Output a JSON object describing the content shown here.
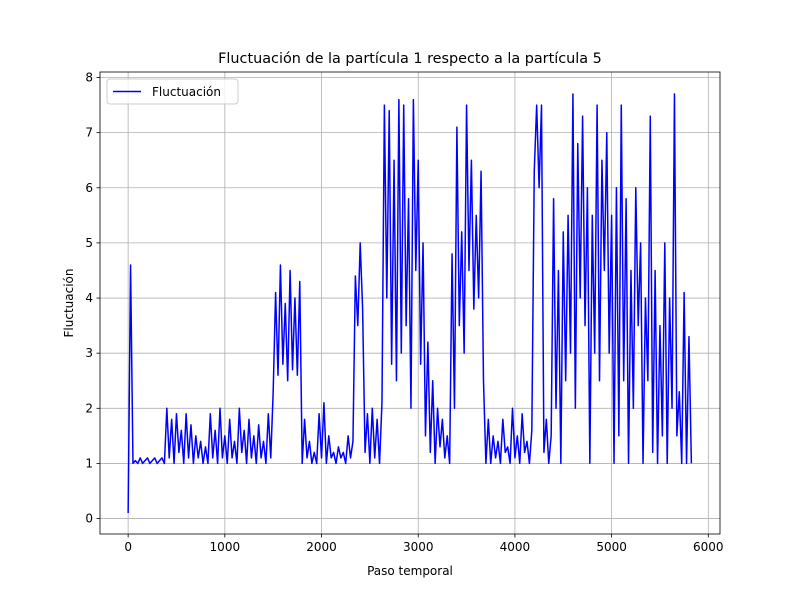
{
  "chart_data": {
    "type": "line",
    "title": "Fluctuación de la partícula 1 respecto a la partícula 5",
    "xlabel": "Paso temporal",
    "ylabel": "Fluctuación",
    "x": [
      0,
      25,
      50,
      75,
      100,
      125,
      150,
      175,
      200,
      225,
      250,
      275,
      300,
      325,
      350,
      375,
      400,
      425,
      450,
      475,
      500,
      525,
      550,
      575,
      600,
      625,
      650,
      675,
      700,
      725,
      750,
      775,
      800,
      825,
      850,
      875,
      900,
      925,
      950,
      975,
      1000,
      1025,
      1050,
      1075,
      1100,
      1125,
      1150,
      1175,
      1200,
      1225,
      1250,
      1275,
      1300,
      1325,
      1350,
      1375,
      1400,
      1425,
      1450,
      1475,
      1500,
      1525,
      1550,
      1575,
      1600,
      1625,
      1650,
      1675,
      1700,
      1725,
      1750,
      1775,
      1800,
      1825,
      1850,
      1875,
      1900,
      1925,
      1950,
      1975,
      2000,
      2025,
      2050,
      2075,
      2100,
      2125,
      2150,
      2175,
      2200,
      2225,
      2250,
      2275,
      2300,
      2325,
      2350,
      2375,
      2400,
      2425,
      2450,
      2475,
      2500,
      2525,
      2550,
      2575,
      2600,
      2625,
      2650,
      2675,
      2700,
      2725,
      2750,
      2775,
      2800,
      2825,
      2850,
      2875,
      2900,
      2925,
      2950,
      2975,
      3000,
      3025,
      3050,
      3075,
      3100,
      3125,
      3150,
      3175,
      3200,
      3225,
      3250,
      3275,
      3300,
      3325,
      3350,
      3375,
      3400,
      3425,
      3450,
      3475,
      3500,
      3525,
      3550,
      3575,
      3600,
      3625,
      3650,
      3675,
      3700,
      3725,
      3750,
      3775,
      3800,
      3825,
      3850,
      3875,
      3900,
      3925,
      3950,
      3975,
      4000,
      4025,
      4050,
      4075,
      4100,
      4125,
      4150,
      4175,
      4200,
      4225,
      4250,
      4275,
      4300,
      4325,
      4350,
      4375,
      4400,
      4425,
      4450,
      4475,
      4500,
      4525,
      4550,
      4575,
      4600,
      4625,
      4650,
      4675,
      4700,
      4725,
      4750,
      4775,
      4800,
      4825,
      4850,
      4875,
      4900,
      4925,
      4950,
      4975,
      5000,
      5025,
      5050,
      5075,
      5100,
      5125,
      5150,
      5175,
      5200,
      5225,
      5250,
      5275,
      5300,
      5325,
      5350,
      5375,
      5400,
      5425,
      5450,
      5475,
      5500,
      5525,
      5550,
      5575,
      5600,
      5625,
      5650,
      5675,
      5700,
      5725,
      5750,
      5775,
      5800,
      5825
    ],
    "series": [
      {
        "name": "Fluctuación",
        "color": "#0000ff",
        "values": [
          0.1,
          4.6,
          1.0,
          1.05,
          1.0,
          1.1,
          1.0,
          1.05,
          1.1,
          1.0,
          1.05,
          1.1,
          1.0,
          1.05,
          1.1,
          1.0,
          2.0,
          1.1,
          1.8,
          1.0,
          1.9,
          1.2,
          1.6,
          1.0,
          1.9,
          1.1,
          1.7,
          1.0,
          1.5,
          1.1,
          1.4,
          1.0,
          1.3,
          1.0,
          1.9,
          1.1,
          1.6,
          1.0,
          2.0,
          1.1,
          1.5,
          1.0,
          1.8,
          1.1,
          1.4,
          1.0,
          2.0,
          1.2,
          1.6,
          1.0,
          1.8,
          1.1,
          1.5,
          1.0,
          1.7,
          1.1,
          1.4,
          1.0,
          1.9,
          1.1,
          2.3,
          4.1,
          2.6,
          4.6,
          2.8,
          3.9,
          2.5,
          4.5,
          2.7,
          4.0,
          2.6,
          4.3,
          1.0,
          1.8,
          1.1,
          1.4,
          1.0,
          1.2,
          1.0,
          1.9,
          1.1,
          2.1,
          1.0,
          1.5,
          1.1,
          1.2,
          1.0,
          1.3,
          1.1,
          1.2,
          1.0,
          1.5,
          1.1,
          1.4,
          4.4,
          3.5,
          5.0,
          3.8,
          1.2,
          1.9,
          1.0,
          2.0,
          1.1,
          1.8,
          1.0,
          2.1,
          7.5,
          4.0,
          7.4,
          2.8,
          6.5,
          2.5,
          7.6,
          3.0,
          7.5,
          3.5,
          5.8,
          2.0,
          7.6,
          4.5,
          6.5,
          2.8,
          5.0,
          1.5,
          3.2,
          1.2,
          2.5,
          1.0,
          2.0,
          1.3,
          1.8,
          1.1,
          1.5,
          1.0,
          4.8,
          2.0,
          7.1,
          3.5,
          5.2,
          3.0,
          7.5,
          4.5,
          6.5,
          3.8,
          5.5,
          4.0,
          6.3,
          2.5,
          1.0,
          1.8,
          1.0,
          1.5,
          1.1,
          1.4,
          1.0,
          1.8,
          1.2,
          1.3,
          1.0,
          2.0,
          1.1,
          1.5,
          1.0,
          1.9,
          1.2,
          1.4,
          1.0,
          1.6,
          6.3,
          7.5,
          6.0,
          7.5,
          1.2,
          1.8,
          1.0,
          1.5,
          5.8,
          2.0,
          4.5,
          1.0,
          5.2,
          2.5,
          5.5,
          3.0,
          7.7,
          2.0,
          6.8,
          4.0,
          7.3,
          3.5,
          6.0,
          1.0,
          5.5,
          3.0,
          7.5,
          2.5,
          6.5,
          4.5,
          7.0,
          3.0,
          5.5,
          1.0,
          6.0,
          1.5,
          7.5,
          2.5,
          5.8,
          1.0,
          4.5,
          2.0,
          6.0,
          3.5,
          5.0,
          1.0,
          4.0,
          2.5,
          7.3,
          1.2,
          4.5,
          1.0,
          3.5,
          1.5,
          5.0,
          1.0,
          4.0,
          2.0,
          7.7,
          1.5,
          2.3,
          1.0,
          4.1,
          1.0,
          3.3,
          1.0
        ]
      }
    ],
    "xlim": [
      -291,
      6121
    ],
    "xticks": [
      0,
      1000,
      2000,
      3000,
      4000,
      5000,
      6000
    ],
    "ylim": [
      -0.28,
      8.1
    ],
    "yticks": [
      0,
      1,
      2,
      3,
      4,
      5,
      6,
      7,
      8
    ],
    "grid": true,
    "legend": "upper left"
  }
}
